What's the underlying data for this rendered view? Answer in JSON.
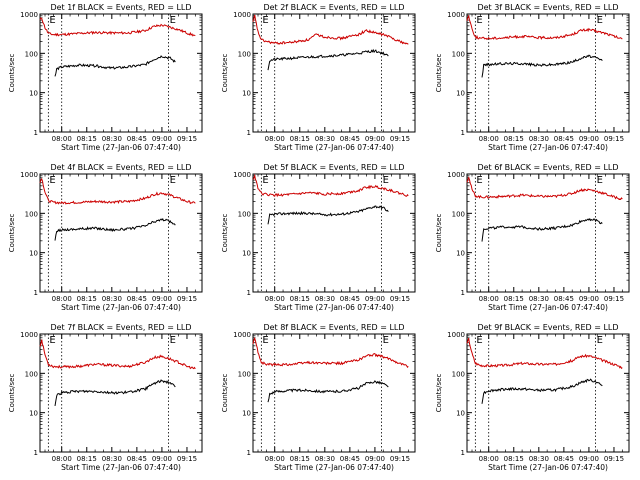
{
  "chart_data": [
    {
      "type": "line",
      "title": "Det 1f BLACK = Events, RED = LLD",
      "xlabel": "Start Time (27-Jan-06 07:47:40)",
      "ylabel": "Counts/sec",
      "ylim": [
        1,
        1000
      ],
      "yscale": "log",
      "x_ticks": [
        "08:00",
        "08:15",
        "08:30",
        "08:45",
        "09:00",
        "09:15"
      ],
      "y_ticks": [
        "1",
        "10",
        "100",
        "1000"
      ],
      "vlines": [
        "07:52",
        "08:00",
        "09:04"
      ],
      "event_marker": "E",
      "grid": false,
      "series": [
        {
          "color": "#cc0000",
          "x": [
            "07:47",
            "07:48",
            "07:50",
            "07:52",
            "07:55",
            "08:00",
            "08:10",
            "08:20",
            "08:30",
            "08:40",
            "08:50",
            "08:55",
            "09:00",
            "09:05",
            "09:10",
            "09:15",
            "09:20"
          ],
          "y": [
            700,
            800,
            450,
            320,
            300,
            300,
            320,
            340,
            330,
            330,
            380,
            480,
            520,
            460,
            400,
            330,
            280
          ]
        },
        {
          "color": "#000000",
          "x": [
            "07:56",
            "07:57",
            "08:00",
            "08:10",
            "08:20",
            "08:30",
            "08:40",
            "08:50",
            "08:55",
            "09:00",
            "09:05",
            "09:08"
          ],
          "y": [
            25,
            40,
            45,
            50,
            48,
            42,
            45,
            52,
            70,
            85,
            75,
            60
          ]
        }
      ]
    },
    {
      "type": "line",
      "title": "Det 2f BLACK = Events, RED = LLD",
      "xlabel": "Start Time (27-Jan-06 07:47:40)",
      "ylabel": "Counts/sec",
      "ylim": [
        1,
        1000
      ],
      "yscale": "log",
      "x_ticks": [
        "08:00",
        "08:15",
        "08:30",
        "08:45",
        "09:00",
        "09:15"
      ],
      "y_ticks": [
        "1",
        "10",
        "100",
        "1000"
      ],
      "vlines": [
        "07:52",
        "08:00",
        "09:04"
      ],
      "event_marker": "E",
      "grid": false,
      "series": [
        {
          "color": "#cc0000",
          "x": [
            "07:47",
            "07:48",
            "07:50",
            "07:52",
            "07:55",
            "08:00",
            "08:10",
            "08:20",
            "08:25",
            "08:30",
            "08:40",
            "08:50",
            "08:55",
            "09:00",
            "09:05",
            "09:10",
            "09:15",
            "09:20"
          ],
          "y": [
            600,
            900,
            350,
            220,
            200,
            180,
            190,
            220,
            300,
            260,
            240,
            300,
            380,
            330,
            300,
            250,
            200,
            170
          ]
        },
        {
          "color": "#000000",
          "x": [
            "07:56",
            "07:57",
            "08:00",
            "08:10",
            "08:20",
            "08:30",
            "08:40",
            "08:50",
            "08:55",
            "09:00",
            "09:05",
            "09:08"
          ],
          "y": [
            40,
            65,
            70,
            75,
            80,
            85,
            90,
            100,
            110,
            115,
            100,
            85
          ]
        }
      ]
    },
    {
      "type": "line",
      "title": "Det 3f BLACK = Events, RED = LLD",
      "xlabel": "Start Time (27-Jan-06 07:47:40)",
      "ylabel": "Counts/sec",
      "ylim": [
        1,
        1000
      ],
      "yscale": "log",
      "x_ticks": [
        "08:00",
        "08:15",
        "08:30",
        "08:45",
        "09:00",
        "09:15"
      ],
      "y_ticks": [
        "1",
        "10",
        "100",
        "1000"
      ],
      "vlines": [
        "07:52",
        "08:00",
        "09:04"
      ],
      "event_marker": "E",
      "grid": false,
      "series": [
        {
          "color": "#cc0000",
          "x": [
            "07:47",
            "07:48",
            "07:50",
            "07:52",
            "07:55",
            "08:00",
            "08:10",
            "08:20",
            "08:30",
            "08:40",
            "08:50",
            "08:55",
            "09:00",
            "09:05",
            "09:10",
            "09:15",
            "09:20"
          ],
          "y": [
            700,
            900,
            420,
            260,
            240,
            240,
            250,
            270,
            250,
            250,
            300,
            380,
            400,
            360,
            320,
            270,
            230
          ]
        },
        {
          "color": "#000000",
          "x": [
            "07:56",
            "07:57",
            "08:00",
            "08:10",
            "08:20",
            "08:30",
            "08:40",
            "08:50",
            "08:55",
            "09:00",
            "09:05",
            "09:08"
          ],
          "y": [
            25,
            50,
            52,
            55,
            55,
            50,
            52,
            60,
            75,
            85,
            75,
            65
          ]
        }
      ]
    },
    {
      "type": "line",
      "title": "Det 4f BLACK = Events, RED = LLD",
      "xlabel": "Start Time (27-Jan-06 07:47:40)",
      "ylabel": "Counts/sec",
      "ylim": [
        1,
        1000
      ],
      "yscale": "log",
      "x_ticks": [
        "08:00",
        "08:15",
        "08:30",
        "08:45",
        "09:00",
        "09:15"
      ],
      "y_ticks": [
        "1",
        "10",
        "100",
        "1000"
      ],
      "vlines": [
        "07:52",
        "08:00",
        "09:04"
      ],
      "event_marker": "E",
      "grid": false,
      "series": [
        {
          "color": "#cc0000",
          "x": [
            "07:47",
            "07:48",
            "07:50",
            "07:52",
            "07:55",
            "08:00",
            "08:10",
            "08:20",
            "08:30",
            "08:40",
            "08:50",
            "08:55",
            "09:00",
            "09:05",
            "09:10",
            "09:15",
            "09:20"
          ],
          "y": [
            600,
            800,
            350,
            210,
            190,
            185,
            190,
            200,
            195,
            200,
            240,
            300,
            330,
            290,
            240,
            200,
            180
          ]
        },
        {
          "color": "#000000",
          "x": [
            "07:56",
            "07:57",
            "08:00",
            "08:10",
            "08:20",
            "08:30",
            "08:40",
            "08:50",
            "08:55",
            "09:00",
            "09:05",
            "09:08"
          ],
          "y": [
            20,
            35,
            38,
            40,
            42,
            38,
            40,
            48,
            60,
            70,
            62,
            50
          ]
        }
      ]
    },
    {
      "type": "line",
      "title": "Det 5f BLACK = Events, RED = LLD",
      "xlabel": "Start Time (27-Jan-06 07:47:40)",
      "ylabel": "Counts/sec",
      "ylim": [
        1,
        1000
      ],
      "yscale": "log",
      "x_ticks": [
        "08:00",
        "08:15",
        "08:30",
        "08:45",
        "09:00",
        "09:15"
      ],
      "y_ticks": [
        "1",
        "10",
        "100",
        "1000"
      ],
      "vlines": [
        "07:52",
        "08:00",
        "09:04"
      ],
      "event_marker": "E",
      "grid": false,
      "series": [
        {
          "color": "#cc0000",
          "x": [
            "07:47",
            "07:48",
            "07:50",
            "07:52",
            "07:55",
            "08:00",
            "08:10",
            "08:20",
            "08:30",
            "08:40",
            "08:50",
            "08:55",
            "09:00",
            "09:05",
            "09:10",
            "09:15",
            "09:20"
          ],
          "y": [
            700,
            900,
            450,
            320,
            300,
            290,
            300,
            330,
            310,
            320,
            380,
            460,
            480,
            430,
            380,
            320,
            280
          ]
        },
        {
          "color": "#000000",
          "x": [
            "07:56",
            "07:57",
            "08:00",
            "08:10",
            "08:20",
            "08:30",
            "08:40",
            "08:50",
            "08:55",
            "09:00",
            "09:05",
            "09:08"
          ],
          "y": [
            50,
            90,
            95,
            100,
            100,
            92,
            95,
            110,
            130,
            150,
            140,
            110
          ]
        }
      ]
    },
    {
      "type": "line",
      "title": "Det 6f BLACK = Events, RED = LLD",
      "xlabel": "Start Time (27-Jan-06 07:47:40)",
      "ylabel": "Counts/sec",
      "ylim": [
        1,
        1000
      ],
      "yscale": "log",
      "x_ticks": [
        "08:00",
        "08:15",
        "08:30",
        "08:45",
        "09:00",
        "09:15"
      ],
      "y_ticks": [
        "1",
        "10",
        "100",
        "1000"
      ],
      "vlines": [
        "07:52",
        "08:00",
        "09:04"
      ],
      "event_marker": "E",
      "grid": false,
      "series": [
        {
          "color": "#cc0000",
          "x": [
            "07:47",
            "07:48",
            "07:50",
            "07:52",
            "07:55",
            "08:00",
            "08:10",
            "08:20",
            "08:30",
            "08:40",
            "08:50",
            "08:55",
            "09:00",
            "09:05",
            "09:10",
            "09:15",
            "09:20"
          ],
          "y": [
            650,
            850,
            400,
            280,
            260,
            260,
            270,
            290,
            270,
            270,
            320,
            390,
            400,
            360,
            310,
            260,
            230
          ]
        },
        {
          "color": "#000000",
          "x": [
            "07:56",
            "07:57",
            "08:00",
            "08:10",
            "08:20",
            "08:30",
            "08:40",
            "08:50",
            "08:55",
            "09:00",
            "09:05",
            "09:08"
          ],
          "y": [
            20,
            40,
            42,
            45,
            45,
            40,
            42,
            50,
            62,
            72,
            65,
            55
          ]
        }
      ]
    },
    {
      "type": "line",
      "title": "Det 7f BLACK = Events, RED = LLD",
      "xlabel": "Start Time (27-Jan-06 07:47:40)",
      "ylabel": "Counts/sec",
      "ylim": [
        1,
        1000
      ],
      "yscale": "log",
      "x_ticks": [
        "08:00",
        "08:15",
        "08:30",
        "08:45",
        "09:00",
        "09:15"
      ],
      "y_ticks": [
        "1",
        "10",
        "100",
        "1000"
      ],
      "vlines": [
        "07:52",
        "08:00",
        "09:04"
      ],
      "event_marker": "E",
      "grid": false,
      "series": [
        {
          "color": "#cc0000",
          "x": [
            "07:47",
            "07:48",
            "07:50",
            "07:52",
            "07:55",
            "08:00",
            "08:10",
            "08:20",
            "08:30",
            "08:40",
            "08:50",
            "08:55",
            "09:00",
            "09:05",
            "09:10",
            "09:15",
            "09:20"
          ],
          "y": [
            500,
            700,
            300,
            170,
            150,
            145,
            150,
            170,
            160,
            150,
            190,
            250,
            270,
            230,
            190,
            150,
            130
          ]
        },
        {
          "color": "#000000",
          "x": [
            "07:56",
            "07:57",
            "08:00",
            "08:10",
            "08:20",
            "08:30",
            "08:40",
            "08:50",
            "08:55",
            "09:00",
            "09:05",
            "09:08"
          ],
          "y": [
            15,
            28,
            32,
            35,
            35,
            32,
            33,
            40,
            55,
            65,
            58,
            45
          ]
        }
      ]
    },
    {
      "type": "line",
      "title": "Det 8f BLACK = Events, RED = LLD",
      "xlabel": "Start Time (27-Jan-06 07:47:40)",
      "ylabel": "Counts/sec",
      "ylim": [
        1,
        1000
      ],
      "yscale": "log",
      "x_ticks": [
        "08:00",
        "08:15",
        "08:30",
        "08:45",
        "09:00",
        "09:15"
      ],
      "y_ticks": [
        "1",
        "10",
        "100",
        "1000"
      ],
      "vlines": [
        "07:52",
        "08:00",
        "09:04"
      ],
      "event_marker": "E",
      "grid": false,
      "series": [
        {
          "color": "#cc0000",
          "x": [
            "07:47",
            "07:48",
            "07:50",
            "07:52",
            "07:55",
            "08:00",
            "08:10",
            "08:20",
            "08:30",
            "08:40",
            "08:50",
            "08:55",
            "09:00",
            "09:05",
            "09:10",
            "09:15",
            "09:20"
          ],
          "y": [
            550,
            800,
            350,
            190,
            170,
            165,
            170,
            190,
            180,
            180,
            220,
            280,
            300,
            260,
            220,
            180,
            150
          ]
        },
        {
          "color": "#000000",
          "x": [
            "07:56",
            "07:57",
            "08:00",
            "08:10",
            "08:20",
            "08:30",
            "08:40",
            "08:50",
            "08:55",
            "09:00",
            "09:05",
            "09:08"
          ],
          "y": [
            18,
            30,
            34,
            37,
            37,
            34,
            35,
            42,
            55,
            62,
            55,
            45
          ]
        }
      ]
    },
    {
      "type": "line",
      "title": "Det 9f BLACK = Events, RED = LLD",
      "xlabel": "Start Time (27-Jan-06 07:47:40)",
      "ylabel": "Counts/sec",
      "ylim": [
        1,
        1000
      ],
      "yscale": "log",
      "x_ticks": [
        "08:00",
        "08:15",
        "08:30",
        "08:45",
        "09:00",
        "09:15"
      ],
      "y_ticks": [
        "1",
        "10",
        "100",
        "1000"
      ],
      "vlines": [
        "07:52",
        "08:00",
        "09:04"
      ],
      "event_marker": "E",
      "grid": false,
      "series": [
        {
          "color": "#cc0000",
          "x": [
            "07:47",
            "07:48",
            "07:50",
            "07:52",
            "07:55",
            "08:00",
            "08:10",
            "08:20",
            "08:30",
            "08:40",
            "08:50",
            "08:55",
            "09:00",
            "09:05",
            "09:10",
            "09:15",
            "09:20"
          ],
          "y": [
            550,
            750,
            320,
            180,
            160,
            155,
            160,
            180,
            170,
            170,
            210,
            270,
            280,
            240,
            200,
            170,
            140
          ]
        },
        {
          "color": "#000000",
          "x": [
            "07:56",
            "07:57",
            "08:00",
            "08:10",
            "08:20",
            "08:30",
            "08:40",
            "08:50",
            "08:55",
            "09:00",
            "09:05",
            "09:08"
          ],
          "y": [
            18,
            32,
            36,
            40,
            40,
            37,
            38,
            46,
            58,
            68,
            60,
            48
          ]
        }
      ]
    }
  ]
}
